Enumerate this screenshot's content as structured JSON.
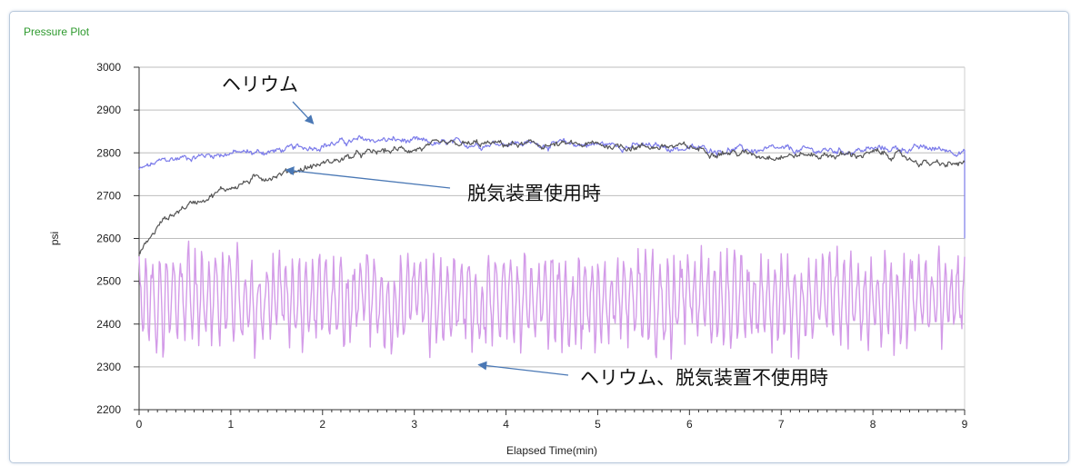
{
  "panel": {
    "title": "Pressure Plot"
  },
  "chart_data": {
    "type": "line",
    "xlabel": "Elapsed Time(min)",
    "ylabel": "psi",
    "xlim": [
      0,
      9
    ],
    "ylim": [
      2200,
      3000
    ],
    "x_ticks": [
      0,
      1,
      2,
      3,
      4,
      5,
      6,
      7,
      8,
      9
    ],
    "y_ticks": [
      2200,
      2300,
      2400,
      2500,
      2600,
      2700,
      2800,
      2900,
      3000
    ],
    "grid": "horizontal",
    "series": [
      {
        "name": "ヘリウム",
        "color": "#7b7bea",
        "x": [
          0,
          0.25,
          0.5,
          0.75,
          1,
          1.25,
          1.5,
          1.75,
          2,
          2.25,
          2.5,
          2.75,
          3,
          3.25,
          3.5,
          3.75,
          4,
          4.25,
          4.5,
          4.75,
          5,
          5.25,
          5.5,
          5.75,
          6,
          6.25,
          6.5,
          6.75,
          7,
          7.25,
          7.5,
          7.75,
          8,
          8.25,
          8.5,
          8.75,
          9
        ],
        "y": [
          2760,
          2780,
          2790,
          2795,
          2800,
          2800,
          2805,
          2810,
          2820,
          2825,
          2830,
          2830,
          2825,
          2820,
          2820,
          2822,
          2825,
          2822,
          2820,
          2820,
          2820,
          2818,
          2815,
          2812,
          2810,
          2808,
          2808,
          2805,
          2805,
          2805,
          2805,
          2805,
          2808,
          2810,
          2810,
          2808,
          2805
        ]
      },
      {
        "name": "脱気装置使用時",
        "color": "#555555",
        "x": [
          0,
          0.25,
          0.5,
          0.75,
          1,
          1.25,
          1.5,
          1.75,
          2,
          2.25,
          2.5,
          2.75,
          3,
          3.25,
          3.5,
          3.75,
          4,
          4.25,
          4.5,
          4.75,
          5,
          5.25,
          5.5,
          5.75,
          6,
          6.25,
          6.5,
          6.75,
          7,
          7.25,
          7.5,
          7.75,
          8,
          8.25,
          8.5,
          8.75,
          9
        ],
        "y": [
          2565,
          2640,
          2675,
          2700,
          2720,
          2738,
          2750,
          2762,
          2775,
          2788,
          2798,
          2805,
          2810,
          2815,
          2818,
          2820,
          2820,
          2818,
          2818,
          2818,
          2818,
          2816,
          2815,
          2815,
          2812,
          2805,
          2800,
          2795,
          2795,
          2795,
          2795,
          2795,
          2798,
          2795,
          2780,
          2770,
          2775
        ]
      },
      {
        "name": "ヘリウム、脱気装置不使用時",
        "color": "#d39be8",
        "x": [
          0,
          0.25,
          0.5,
          0.75,
          1,
          1.25,
          1.5,
          1.75,
          2,
          2.25,
          2.5,
          2.75,
          3,
          3.25,
          3.5,
          3.75,
          4,
          4.25,
          4.5,
          4.75,
          5,
          5.25,
          5.5,
          5.75,
          6,
          6.25,
          6.5,
          6.75,
          7,
          7.25,
          7.5,
          7.75,
          8,
          8.25,
          8.5,
          8.75,
          9
        ],
        "y": [
          2460,
          2440,
          2470,
          2450,
          2480,
          2430,
          2470,
          2440,
          2460,
          2440,
          2480,
          2430,
          2470,
          2440,
          2460,
          2430,
          2480,
          2440,
          2470,
          2430,
          2460,
          2450,
          2470,
          2430,
          2480,
          2440,
          2470,
          2440,
          2460,
          2440,
          2470,
          2450,
          2460,
          2440,
          2470,
          2450,
          2460
        ],
        "min": 2270,
        "max": 2610
      }
    ],
    "annotations": [
      {
        "text": "ヘリウム",
        "points_to": {
          "x": 1.9,
          "y": 2868
        }
      },
      {
        "text": "脱気装置使用時",
        "points_to": {
          "x": 1.6,
          "y": 2760
        }
      },
      {
        "text": "ヘリウム、脱気装置不使用時",
        "points_to": {
          "x": 3.7,
          "y": 2305
        }
      }
    ]
  }
}
